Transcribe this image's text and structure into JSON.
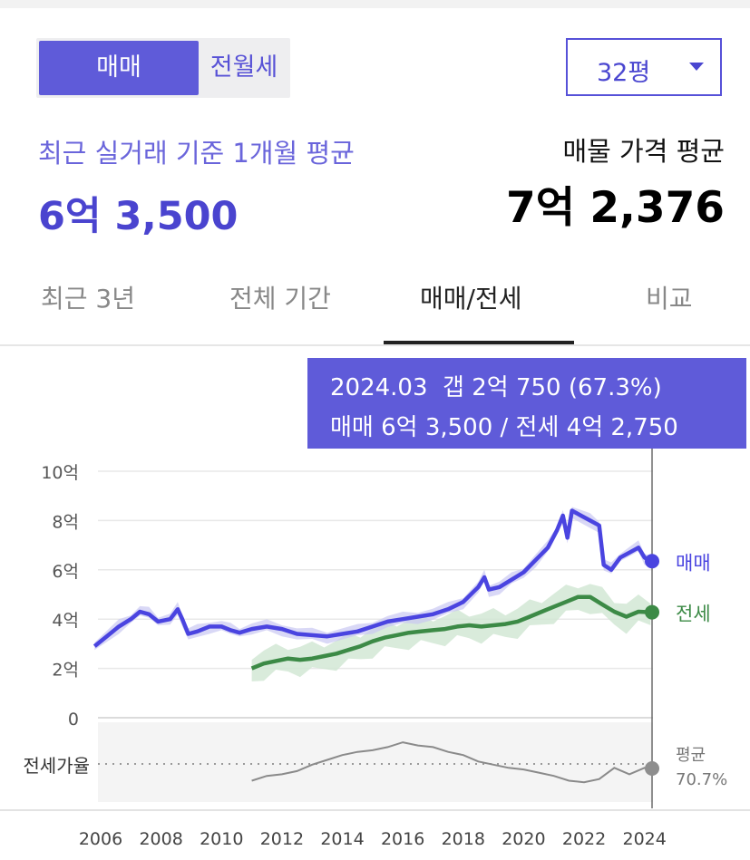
{
  "segment": {
    "tabs": [
      {
        "label": "매매",
        "active": true
      },
      {
        "label": "전월세",
        "active": false
      }
    ]
  },
  "size_select": {
    "value": "32평"
  },
  "summary": {
    "recent_label": "최근 실거래 기준 1개월 평균",
    "recent_price": "6억 3,500",
    "listing_label": "매물 가격 평균",
    "listing_price": "7억 2,376"
  },
  "tabs": [
    {
      "label": "최근 3년",
      "active": false
    },
    {
      "label": "전체 기간",
      "active": false
    },
    {
      "label": "매매/전세",
      "active": true
    },
    {
      "label": "비교",
      "active": false
    }
  ],
  "tooltip": {
    "line1": "2024.03  갭 2억 750 (67.3%)",
    "line2": "매매 6억 3,500 / 전세 4억 2,750"
  },
  "colors": {
    "accent": "#5f5bd9",
    "sale": "#4a44e0",
    "jeonse": "#3c8a46",
    "jeonse_band": "#cfe6d2",
    "sale_band": "#c9c7f2",
    "ratio": "#8a8a8a"
  },
  "chart_data": {
    "type": "line",
    "x_tick_labels": [
      "2006",
      "2008",
      "2010",
      "2012",
      "2014",
      "2016",
      "2018",
      "2020",
      "2022",
      "2024"
    ],
    "y_tick_labels": [
      "10억",
      "8억",
      "6억",
      "4억",
      "2억",
      "0"
    ],
    "ylim": [
      0,
      10
    ],
    "x_range": [
      2006,
      2024.25
    ],
    "y_unit": "억",
    "series": [
      {
        "name": "매매",
        "end_label": "매매",
        "points": [
          [
            2005.8,
            2.9
          ],
          [
            2006.2,
            3.3
          ],
          [
            2006.6,
            3.7
          ],
          [
            2007.0,
            4.0
          ],
          [
            2007.3,
            4.3
          ],
          [
            2007.6,
            4.2
          ],
          [
            2007.9,
            3.9
          ],
          [
            2008.3,
            4.0
          ],
          [
            2008.55,
            4.4
          ],
          [
            2008.7,
            4.0
          ],
          [
            2008.9,
            3.4
          ],
          [
            2009.2,
            3.5
          ],
          [
            2009.6,
            3.7
          ],
          [
            2010.0,
            3.7
          ],
          [
            2010.3,
            3.55
          ],
          [
            2010.6,
            3.45
          ],
          [
            2011.0,
            3.6
          ],
          [
            2011.5,
            3.7
          ],
          [
            2012.0,
            3.6
          ],
          [
            2012.5,
            3.4
          ],
          [
            2013.0,
            3.35
          ],
          [
            2013.5,
            3.3
          ],
          [
            2014.0,
            3.4
          ],
          [
            2014.5,
            3.5
          ],
          [
            2015.0,
            3.7
          ],
          [
            2015.5,
            3.9
          ],
          [
            2016.0,
            4.0
          ],
          [
            2016.5,
            4.1
          ],
          [
            2017.0,
            4.2
          ],
          [
            2017.5,
            4.4
          ],
          [
            2018.0,
            4.7
          ],
          [
            2018.5,
            5.3
          ],
          [
            2018.7,
            5.7
          ],
          [
            2018.85,
            5.2
          ],
          [
            2019.2,
            5.3
          ],
          [
            2019.6,
            5.6
          ],
          [
            2020.0,
            5.9
          ],
          [
            2020.4,
            6.4
          ],
          [
            2020.8,
            6.9
          ],
          [
            2021.1,
            7.6
          ],
          [
            2021.3,
            8.2
          ],
          [
            2021.45,
            7.3
          ],
          [
            2021.6,
            8.4
          ],
          [
            2021.9,
            8.2
          ],
          [
            2022.2,
            8.0
          ],
          [
            2022.5,
            7.8
          ],
          [
            2022.65,
            6.2
          ],
          [
            2022.9,
            6.0
          ],
          [
            2023.2,
            6.5
          ],
          [
            2023.5,
            6.7
          ],
          [
            2023.8,
            6.9
          ],
          [
            2024.0,
            6.5
          ],
          [
            2024.2,
            6.35
          ]
        ]
      },
      {
        "name": "전세",
        "end_label": "전세",
        "points": [
          [
            2011.0,
            2.0
          ],
          [
            2011.4,
            2.2
          ],
          [
            2011.8,
            2.3
          ],
          [
            2012.2,
            2.4
          ],
          [
            2012.6,
            2.35
          ],
          [
            2013.0,
            2.4
          ],
          [
            2013.4,
            2.5
          ],
          [
            2013.8,
            2.6
          ],
          [
            2014.2,
            2.75
          ],
          [
            2014.6,
            2.9
          ],
          [
            2015.0,
            3.1
          ],
          [
            2015.4,
            3.25
          ],
          [
            2015.8,
            3.35
          ],
          [
            2016.2,
            3.45
          ],
          [
            2016.6,
            3.5
          ],
          [
            2017.0,
            3.55
          ],
          [
            2017.4,
            3.6
          ],
          [
            2017.8,
            3.7
          ],
          [
            2018.2,
            3.75
          ],
          [
            2018.6,
            3.7
          ],
          [
            2019.0,
            3.75
          ],
          [
            2019.4,
            3.8
          ],
          [
            2019.8,
            3.9
          ],
          [
            2020.2,
            4.1
          ],
          [
            2020.6,
            4.3
          ],
          [
            2021.0,
            4.5
          ],
          [
            2021.4,
            4.7
          ],
          [
            2021.8,
            4.9
          ],
          [
            2022.2,
            4.9
          ],
          [
            2022.6,
            4.6
          ],
          [
            2023.0,
            4.3
          ],
          [
            2023.4,
            4.1
          ],
          [
            2023.8,
            4.3
          ],
          [
            2024.2,
            4.28
          ]
        ]
      }
    ],
    "ratio_series": {
      "label": "전세가율",
      "avg_label": "평균",
      "avg_value": "70.7%",
      "points": [
        [
          2011.0,
          62
        ],
        [
          2011.5,
          65
        ],
        [
          2012.0,
          66
        ],
        [
          2012.5,
          68
        ],
        [
          2013.0,
          72
        ],
        [
          2013.5,
          75
        ],
        [
          2014.0,
          78
        ],
        [
          2014.5,
          80
        ],
        [
          2015.0,
          81
        ],
        [
          2015.5,
          83
        ],
        [
          2016.0,
          86
        ],
        [
          2016.5,
          84
        ],
        [
          2017.0,
          83
        ],
        [
          2017.5,
          80
        ],
        [
          2018.0,
          78
        ],
        [
          2018.5,
          74
        ],
        [
          2019.0,
          72
        ],
        [
          2019.5,
          70
        ],
        [
          2020.0,
          69
        ],
        [
          2020.5,
          67
        ],
        [
          2021.0,
          65
        ],
        [
          2021.5,
          62
        ],
        [
          2022.0,
          61
        ],
        [
          2022.5,
          63
        ],
        [
          2023.0,
          70
        ],
        [
          2023.5,
          66
        ],
        [
          2024.0,
          70
        ],
        [
          2024.2,
          67
        ]
      ]
    },
    "marker_date": "2024.03"
  }
}
